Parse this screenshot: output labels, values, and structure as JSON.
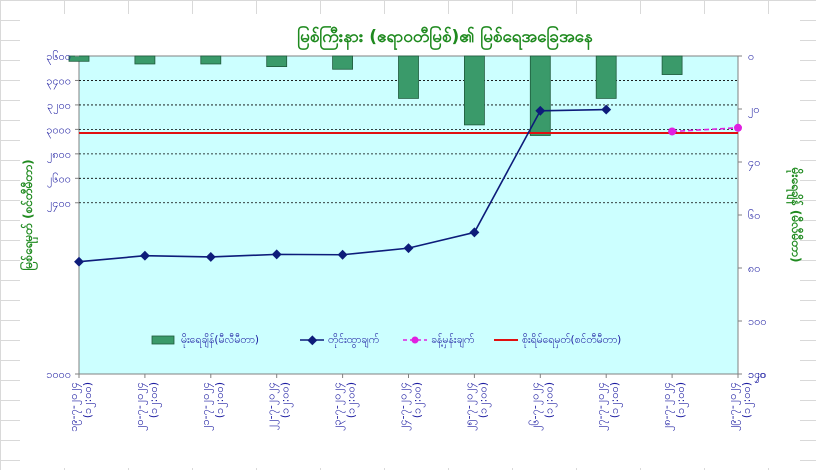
{
  "chart_data": {
    "type": "line",
    "title": "မြစ်ကြီးနား (ဧရာဝတီမြစ်)၏ မြစ်ရေအခြေအနေ",
    "ylabel_left": "မြစ်ရေမှတ် (စင်တီမီတာ)",
    "ylabel_right": "မိုးရေချိန် (မီလီမီတာ)",
    "left_axis": {
      "min": 1000,
      "max": 3600,
      "ticks": [
        "၃၆၀၀",
        "၃၄၀၀",
        "၃၂၀၀",
        "၃၀၀၀",
        "၂၈၀၀",
        "၂၆၀၀",
        "၂၄၀၀"
      ],
      "tick_values": [
        3600,
        3400,
        3200,
        3000,
        2800,
        2600,
        2400
      ]
    },
    "right_axis": {
      "min": 0,
      "max": 120,
      "ticks": [
        "၀",
        "၂၀",
        "၄၀",
        "၆၀",
        "၈၀",
        "၁၀၀",
        "၁၂၀"
      ],
      "tick_values": [
        0,
        20,
        40,
        60,
        80,
        100,
        120
      ]
    },
    "categories": [
      [
        "၁၉-၇-၂၀၂၄",
        "(၁၂:၀၀)"
      ],
      [
        "၂၀-၇-၂၀၂၄",
        "(၁၂:၀၀)"
      ],
      [
        "၂၁-၇-၂၀၂၄",
        "(၁၂:၀၀)"
      ],
      [
        "၂၂-၇-၂၀၂၄",
        "(၁၂:၀၀)"
      ],
      [
        "၂၃-၇-၂၀၂၄",
        "(၁၂:၀၀)"
      ],
      [
        "၂၄-၇-၂၀၂၄",
        "(၁၂:၀၀)"
      ],
      [
        "၂၅-၇-၂၀၂၄",
        "(၁၂:၀၀)"
      ],
      [
        "၂၆-၇-၂၀၂၄",
        "(၁၂:၀၀)"
      ],
      [
        "၂၇-၇-၂၀၂၄",
        "(၁၂:၀၀)"
      ],
      [
        "၂၈-၇-၂၀၂၄",
        "(၁၂:၀၀)"
      ],
      [
        "၂၉-၇-၂၀၂၄",
        "(၁၂:၀၀)"
      ]
    ],
    "series": [
      {
        "name": "မိုးရေချိန်(မီလီမီတာ)",
        "type": "bar",
        "axis": "right",
        "color": "#3a9a6a",
        "values": [
          2,
          3,
          3,
          4,
          5,
          16,
          26,
          30,
          16,
          7,
          null
        ]
      },
      {
        "name": "တိုင်းထွာချက်",
        "type": "line",
        "axis": "left",
        "color": "#0d1c7a",
        "values": [
          1918,
          1967,
          1957,
          1978,
          1975,
          2029,
          2158,
          3152,
          3162,
          null,
          null
        ]
      },
      {
        "name": "ခန့်မှန်းချက်",
        "type": "dashed",
        "axis": "left",
        "color": "#e020e0",
        "values": [
          null,
          null,
          null,
          null,
          null,
          null,
          null,
          null,
          null,
          2983,
          3013
        ]
      },
      {
        "name": "စိုးရိမ်ရေမှတ်(စင်တီမီတာ)",
        "type": "hline",
        "axis": "left",
        "color": "#e01010",
        "value": 2970
      }
    ],
    "grid": true,
    "legend_position": "bottom-inside"
  }
}
